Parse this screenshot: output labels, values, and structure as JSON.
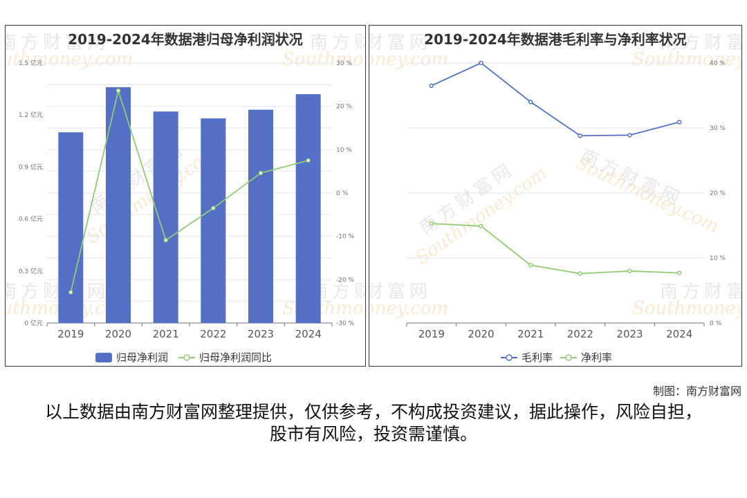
{
  "chart_data": [
    {
      "type": "bar",
      "title": "2019-2024年数据港归母净利润状况",
      "categories": [
        "2019",
        "2020",
        "2021",
        "2022",
        "2023",
        "2024"
      ],
      "series": [
        {
          "name": "归母净利润",
          "type": "bar",
          "axis": "left",
          "values": [
            1.1,
            1.36,
            1.22,
            1.18,
            1.23,
            1.32
          ]
        },
        {
          "name": "归母净利润同比",
          "type": "line",
          "axis": "right",
          "values": [
            -22.9,
            23.6,
            -10.9,
            -3.5,
            4.6,
            7.5
          ]
        }
      ],
      "y_left": {
        "ticks": [
          "0 亿元",
          "0.3 亿元",
          "0.6 亿元",
          "0.9 亿元",
          "1.2 亿元",
          "1.5 亿元"
        ],
        "ylim": [
          0,
          1.5
        ]
      },
      "y_right": {
        "ticks": [
          "-30 %",
          "-20 %",
          "-10 %",
          "0 %",
          "10 %",
          "20 %",
          "30 %"
        ],
        "ylim": [
          -30,
          30
        ]
      },
      "legend": "bottom-center",
      "grid": true,
      "colors": {
        "bar": "#5470c6",
        "line": "#91cc75"
      }
    },
    {
      "type": "line",
      "title": "2019-2024年数据港毛利率与净利率状况",
      "categories": [
        "2019",
        "2020",
        "2021",
        "2022",
        "2023",
        "2024"
      ],
      "series": [
        {
          "name": "毛利率",
          "values": [
            36.5,
            40.0,
            34.0,
            28.8,
            28.9,
            30.9
          ]
        },
        {
          "name": "净利率",
          "values": [
            15.3,
            14.9,
            8.9,
            7.6,
            8.0,
            7.7
          ]
        }
      ],
      "y_right": {
        "ticks": [
          "0 %",
          "10 %",
          "20 %",
          "30 %",
          "40 %"
        ],
        "ylim": [
          0,
          40
        ]
      },
      "legend": "bottom-center",
      "grid": true,
      "colors": {
        "line1": "#5470c6",
        "line2": "#91cc75"
      }
    }
  ],
  "watermark": {
    "cn": "南方财富网",
    "en": "Southmoney.com"
  },
  "credit": "制图：南方财富网",
  "disclaimer": "以上数据由南方财富网整理提供，仅供参考，不构成投资建议，据此操作，风险自担，股市有风险，投资需谨慎。"
}
